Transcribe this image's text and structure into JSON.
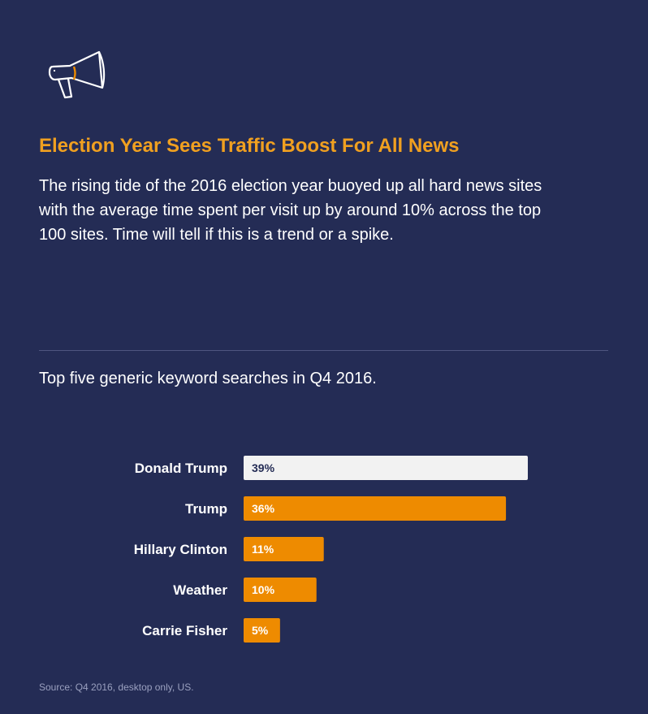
{
  "header": {
    "icon": "megaphone-icon",
    "title": "Election Year Sees Traffic Boost For All News",
    "description": "The rising tide of the 2016 election year buoyed up all hard news sites with the average time spent per visit up by around 10% across the top 100 sites. Time will tell if this is a trend or a spike."
  },
  "section": {
    "subtitle": "Top five generic keyword searches in Q4 2016."
  },
  "colors": {
    "background": "#242c55",
    "accent": "#ee8b00",
    "title": "#f0a020",
    "highlight_bar": "#f2f2f2",
    "highlight_label": "#242c55"
  },
  "chart_data": {
    "type": "bar",
    "orientation": "horizontal",
    "categories": [
      "Donald Trump",
      "Trump",
      "Hillary Clinton",
      "Weather",
      "Carrie Fisher"
    ],
    "values": [
      39,
      36,
      11,
      10,
      5
    ],
    "value_labels": [
      "39%",
      "36%",
      "11%",
      "10%",
      "5%"
    ],
    "highlighted": [
      "Donald Trump"
    ],
    "xlim": [
      0,
      39
    ],
    "grid": false,
    "legend": "none"
  },
  "footer": {
    "source": "Source: Q4 2016, desktop only, US."
  }
}
